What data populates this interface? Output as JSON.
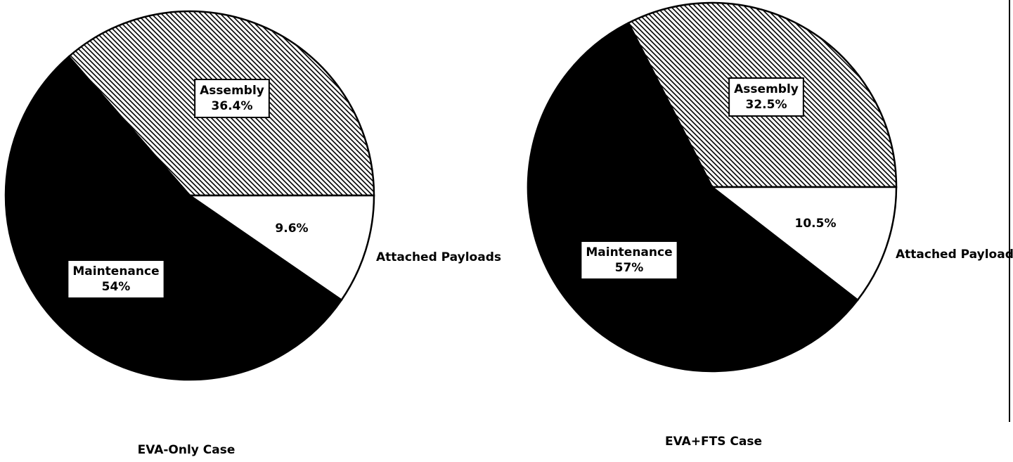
{
  "chart_data": [
    {
      "type": "pie",
      "title": "EVA-Only Case",
      "categories": [
        "Assembly",
        "Attached Payloads",
        "Maintenance"
      ],
      "values": [
        36.4,
        9.6,
        54
      ],
      "value_labels": [
        "36.4%",
        "9.6%",
        "54%"
      ],
      "colors": [
        "#000000",
        "#ffffff",
        "#000000"
      ],
      "hatch": [
        true,
        false,
        false
      ]
    },
    {
      "type": "pie",
      "title": "EVA+FTS Case",
      "categories": [
        "Assembly",
        "Attached Payloads",
        "Maintenance"
      ],
      "values": [
        32.5,
        10.5,
        57
      ],
      "value_labels": [
        "32.5%",
        "10.5%",
        "57%"
      ],
      "colors": [
        "#000000",
        "#ffffff",
        "#000000"
      ],
      "hatch": [
        true,
        false,
        false
      ]
    }
  ]
}
